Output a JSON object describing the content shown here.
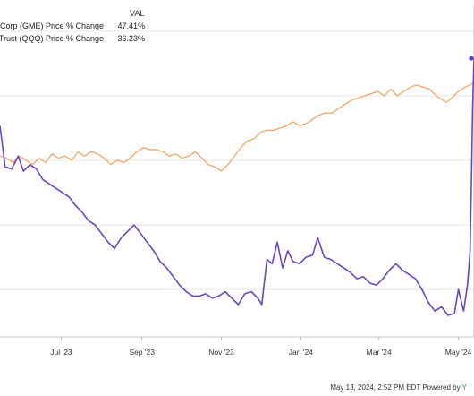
{
  "legend": {
    "header": "VAL",
    "items": [
      {
        "name": "op Corp (GME) Price % Change",
        "value": "47.41%"
      },
      {
        "name": "QQQ Trust (QQQ) Price % Change",
        "value": "36.23%"
      }
    ]
  },
  "footer": {
    "text": "May 13, 2024, 2:52 PM EDT Powered by",
    "mark": "Y"
  },
  "chart_data": {
    "type": "line",
    "title": "",
    "xlabel": "",
    "ylabel": "",
    "x_ticks": [
      {
        "label": "Jul '23",
        "x": "2023-07-01"
      },
      {
        "label": "Sep '23",
        "x": "2023-09-01"
      },
      {
        "label": "Nov '23",
        "x": "2023-11-01"
      },
      {
        "label": "Jan '24",
        "x": "2024-01-01"
      },
      {
        "label": "Mar '24",
        "x": "2024-03-01"
      },
      {
        "label": "May '24",
        "x": "2024-05-01"
      }
    ],
    "xlim": [
      "2023-05-15",
      "2024-05-13"
    ],
    "ylim": [
      -82,
      72
    ],
    "gridlines_y": [
      -60,
      -30,
      0,
      30,
      60
    ],
    "grid": true,
    "series": [
      {
        "name": "op Corp (GME) Price % Change",
        "color": "#6b46c1",
        "points": [
          [
            "2023-05-15",
            16
          ],
          [
            "2023-05-19",
            -3
          ],
          [
            "2023-05-24",
            -4
          ],
          [
            "2023-05-29",
            2
          ],
          [
            "2023-06-02",
            -5
          ],
          [
            "2023-06-07",
            -2
          ],
          [
            "2023-06-12",
            -4
          ],
          [
            "2023-06-17",
            -9
          ],
          [
            "2023-06-22",
            -11
          ],
          [
            "2023-06-27",
            -13
          ],
          [
            "2023-07-02",
            -15
          ],
          [
            "2023-07-07",
            -17
          ],
          [
            "2023-07-12",
            -21
          ],
          [
            "2023-07-17",
            -24
          ],
          [
            "2023-07-22",
            -28
          ],
          [
            "2023-07-27",
            -30
          ],
          [
            "2023-08-01",
            -34
          ],
          [
            "2023-08-06",
            -38
          ],
          [
            "2023-08-11",
            -41
          ],
          [
            "2023-08-16",
            -36
          ],
          [
            "2023-08-21",
            -33
          ],
          [
            "2023-08-26",
            -30
          ],
          [
            "2023-08-31",
            -34
          ],
          [
            "2023-09-05",
            -38
          ],
          [
            "2023-09-10",
            -42
          ],
          [
            "2023-09-15",
            -47
          ],
          [
            "2023-09-20",
            -50
          ],
          [
            "2023-09-25",
            -54
          ],
          [
            "2023-09-30",
            -58
          ],
          [
            "2023-10-05",
            -61
          ],
          [
            "2023-10-10",
            -63
          ],
          [
            "2023-10-15",
            -63
          ],
          [
            "2023-10-20",
            -62
          ],
          [
            "2023-10-25",
            -64
          ],
          [
            "2023-10-30",
            -63
          ],
          [
            "2023-11-04",
            -61
          ],
          [
            "2023-11-09",
            -64
          ],
          [
            "2023-11-14",
            -67
          ],
          [
            "2023-11-19",
            -62
          ],
          [
            "2023-11-24",
            -61
          ],
          [
            "2023-11-29",
            -64
          ],
          [
            "2023-12-02",
            -67
          ],
          [
            "2023-12-06",
            -46
          ],
          [
            "2023-12-10",
            -48
          ],
          [
            "2023-12-14",
            -38
          ],
          [
            "2023-12-18",
            -50
          ],
          [
            "2023-12-22",
            -42
          ],
          [
            "2023-12-26",
            -47
          ],
          [
            "2023-12-31",
            -48
          ],
          [
            "2024-01-05",
            -45
          ],
          [
            "2024-01-10",
            -44
          ],
          [
            "2024-01-14",
            -36
          ],
          [
            "2024-01-19",
            -45
          ],
          [
            "2024-01-24",
            -46
          ],
          [
            "2024-01-29",
            -48
          ],
          [
            "2024-02-03",
            -50
          ],
          [
            "2024-02-08",
            -52
          ],
          [
            "2024-02-13",
            -55
          ],
          [
            "2024-02-18",
            -54
          ],
          [
            "2024-02-23",
            -57
          ],
          [
            "2024-02-28",
            -58
          ],
          [
            "2024-03-04",
            -55
          ],
          [
            "2024-03-09",
            -51
          ],
          [
            "2024-03-14",
            -48
          ],
          [
            "2024-03-19",
            -51
          ],
          [
            "2024-03-24",
            -53
          ],
          [
            "2024-03-29",
            -55
          ],
          [
            "2024-04-03",
            -60
          ],
          [
            "2024-04-08",
            -66
          ],
          [
            "2024-04-13",
            -70
          ],
          [
            "2024-04-18",
            -68
          ],
          [
            "2024-04-23",
            -72
          ],
          [
            "2024-04-28",
            -71
          ],
          [
            "2024-05-01",
            -60
          ],
          [
            "2024-05-05",
            -70
          ],
          [
            "2024-05-08",
            -58
          ],
          [
            "2024-05-09",
            -50
          ],
          [
            "2024-05-10",
            -42
          ],
          [
            "2024-05-11",
            -10
          ],
          [
            "2024-05-12",
            25
          ],
          [
            "2024-05-13",
            47.41
          ]
        ]
      },
      {
        "name": "QQQ Trust (QQQ) Price % Change",
        "color": "#f4a15d",
        "points": [
          [
            "2023-05-15",
            2
          ],
          [
            "2023-05-20",
            1
          ],
          [
            "2023-05-25",
            -1
          ],
          [
            "2023-05-30",
            2
          ],
          [
            "2023-06-04",
            0
          ],
          [
            "2023-06-09",
            -2
          ],
          [
            "2023-06-14",
            1
          ],
          [
            "2023-06-19",
            -1
          ],
          [
            "2023-06-24",
            3
          ],
          [
            "2023-06-29",
            1
          ],
          [
            "2023-07-04",
            2
          ],
          [
            "2023-07-09",
            0
          ],
          [
            "2023-07-14",
            4
          ],
          [
            "2023-07-19",
            2
          ],
          [
            "2023-07-24",
            4
          ],
          [
            "2023-07-29",
            3
          ],
          [
            "2023-08-03",
            1
          ],
          [
            "2023-08-08",
            -2
          ],
          [
            "2023-08-13",
            0
          ],
          [
            "2023-08-18",
            -1
          ],
          [
            "2023-08-23",
            1
          ],
          [
            "2023-08-28",
            4
          ],
          [
            "2023-09-02",
            6
          ],
          [
            "2023-09-07",
            5
          ],
          [
            "2023-09-12",
            5
          ],
          [
            "2023-09-17",
            4
          ],
          [
            "2023-09-22",
            2
          ],
          [
            "2023-09-27",
            3
          ],
          [
            "2023-10-02",
            1
          ],
          [
            "2023-10-07",
            2
          ],
          [
            "2023-10-12",
            4
          ],
          [
            "2023-10-17",
            1
          ],
          [
            "2023-10-22",
            -2
          ],
          [
            "2023-10-27",
            -3
          ],
          [
            "2023-11-01",
            -5
          ],
          [
            "2023-11-06",
            -2
          ],
          [
            "2023-11-11",
            2
          ],
          [
            "2023-11-16",
            6
          ],
          [
            "2023-11-21",
            9
          ],
          [
            "2023-11-26",
            10
          ],
          [
            "2023-12-01",
            13
          ],
          [
            "2023-12-06",
            14
          ],
          [
            "2023-12-11",
            14
          ],
          [
            "2023-12-16",
            15
          ],
          [
            "2023-12-21",
            16
          ],
          [
            "2023-12-26",
            18
          ],
          [
            "2023-12-31",
            16
          ],
          [
            "2024-01-05",
            17
          ],
          [
            "2024-01-10",
            19
          ],
          [
            "2024-01-15",
            21
          ],
          [
            "2024-01-20",
            22
          ],
          [
            "2024-01-25",
            22
          ],
          [
            "2024-01-30",
            24
          ],
          [
            "2024-02-04",
            26
          ],
          [
            "2024-02-09",
            28
          ],
          [
            "2024-02-14",
            29
          ],
          [
            "2024-02-19",
            30
          ],
          [
            "2024-02-24",
            31
          ],
          [
            "2024-02-29",
            32
          ],
          [
            "2024-03-05",
            30
          ],
          [
            "2024-03-10",
            33
          ],
          [
            "2024-03-15",
            30
          ],
          [
            "2024-03-20",
            32
          ],
          [
            "2024-03-25",
            34
          ],
          [
            "2024-03-30",
            35
          ],
          [
            "2024-04-04",
            34
          ],
          [
            "2024-04-09",
            33
          ],
          [
            "2024-04-14",
            30
          ],
          [
            "2024-04-19",
            28
          ],
          [
            "2024-04-22",
            27
          ],
          [
            "2024-04-26",
            29
          ],
          [
            "2024-05-01",
            32
          ],
          [
            "2024-05-06",
            34
          ],
          [
            "2024-05-10",
            35
          ],
          [
            "2024-05-13",
            36.23
          ]
        ]
      }
    ]
  }
}
